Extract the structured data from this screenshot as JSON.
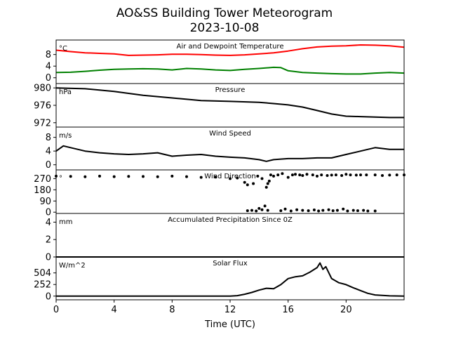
{
  "chart_data": {
    "type": "line",
    "title": "AO&SS Building Tower Meteorogram",
    "subtitle": "2023-10-08",
    "xlabel": "Time (UTC)",
    "xlim": [
      0,
      24
    ],
    "xticks": [
      0,
      4,
      8,
      12,
      16,
      20
    ],
    "panels": [
      {
        "title": "Air and Dewpoint Temperature",
        "unit": "°C",
        "ylim": [
          -2,
          13
        ],
        "yticks": [
          0,
          4,
          8
        ],
        "series": [
          {
            "color": "#ff0000",
            "style": "line",
            "x": [
              0,
              1,
              2,
              3,
              4,
              5,
              6,
              7,
              8,
              9,
              10,
              11,
              12,
              13,
              14,
              15,
              16,
              17,
              18,
              19,
              20,
              21,
              22,
              23,
              24
            ],
            "y": [
              9.5,
              9.0,
              8.6,
              8.4,
              8.2,
              7.7,
              7.8,
              7.9,
              8.1,
              8.1,
              8.0,
              7.8,
              7.7,
              7.9,
              8.2,
              8.6,
              9.2,
              10.0,
              10.6,
              10.9,
              11.0,
              11.3,
              11.2,
              11.0,
              10.5
            ]
          },
          {
            "color": "#008000",
            "style": "line",
            "x": [
              0,
              1,
              2,
              3,
              4,
              5,
              6,
              7,
              8,
              9,
              10,
              11,
              12,
              13,
              14,
              15,
              15.5,
              16,
              17,
              18,
              19,
              20,
              21,
              22,
              23,
              24
            ],
            "y": [
              1.8,
              1.9,
              2.2,
              2.6,
              2.9,
              3.0,
              3.1,
              3.0,
              2.7,
              3.2,
              3.0,
              2.7,
              2.5,
              2.9,
              3.2,
              3.6,
              3.5,
              2.4,
              1.8,
              1.6,
              1.4,
              1.3,
              1.3,
              1.6,
              1.8,
              1.6
            ]
          }
        ]
      },
      {
        "title": "Pressure",
        "unit": "hPa",
        "ylim": [
          971,
          981
        ],
        "yticks": [
          972,
          976,
          980
        ],
        "series": [
          {
            "color": "#000000",
            "style": "line",
            "x": [
              0,
              2,
              4,
              6,
              8,
              10,
              12,
              14,
              15,
              16,
              17,
              18,
              19,
              20,
              21,
              22,
              23,
              24
            ],
            "y": [
              980.0,
              979.8,
              979.2,
              978.3,
              977.7,
              977.1,
              976.9,
              976.7,
              976.4,
              976.1,
              975.6,
              974.8,
              974.0,
              973.5,
              973.4,
              973.3,
              973.2,
              973.2
            ]
          }
        ]
      },
      {
        "title": "Wind Speed",
        "unit": "m/s",
        "ylim": [
          -1.5,
          11
        ],
        "yticks": [
          0,
          4,
          8
        ],
        "series": [
          {
            "color": "#000000",
            "style": "line",
            "x": [
              0,
              0.5,
              1,
              2,
              3,
              4,
              5,
              6,
              7,
              8,
              9,
              10,
              11,
              12,
              13,
              14,
              14.5,
              15,
              16,
              17,
              18,
              19,
              20,
              21,
              22,
              23,
              24
            ],
            "y": [
              4.0,
              5.5,
              5.0,
              4.0,
              3.5,
              3.2,
              3.0,
              3.2,
              3.5,
              2.5,
              2.8,
              3.0,
              2.5,
              2.2,
              2.0,
              1.5,
              1.0,
              1.5,
              1.8,
              1.8,
              2.0,
              2.0,
              3.0,
              4.0,
              5.0,
              4.5,
              4.5
            ]
          }
        ]
      },
      {
        "title": "Wind Direction",
        "unit": "°",
        "ylim": [
          -10,
          340
        ],
        "yticks": [
          0,
          90,
          180,
          270
        ],
        "series": [
          {
            "color": "#000000",
            "style": "dots",
            "x": [
              0,
              1,
              2,
              3,
              4,
              5,
              6,
              7,
              8,
              9,
              10,
              11,
              12,
              12.5,
              13,
              13.2,
              13.6,
              13.9,
              14.2,
              14.5,
              14.6,
              14.7,
              14.8,
              15.0,
              15.3,
              15.6,
              16.0,
              16.3,
              16.5,
              16.8,
              17.0,
              17.3,
              17.7,
              18.0,
              18.3,
              18.7,
              19.0,
              19.3,
              19.7,
              20.0,
              20.3,
              20.7,
              21.0,
              21.4,
              22.0,
              22.5,
              23.0,
              23.5,
              24.0
            ],
            "y": [
              290,
              288,
              285,
              290,
              286,
              288,
              287,
              285,
              290,
              286,
              280,
              282,
              270,
              275,
              240,
              220,
              230,
              290,
              270,
              200,
              230,
              250,
              300,
              290,
              300,
              310,
              280,
              300,
              305,
              300,
              295,
              305,
              300,
              290,
              300,
              295,
              298,
              300,
              295,
              305,
              300,
              298,
              300,
              300,
              300,
              295,
              298,
              300,
              300
            ]
          },
          {
            "color": "#000000",
            "style": "dots",
            "x": [
              13.2,
              13.5,
              13.8,
              14.0,
              14.2,
              14.4,
              14.6,
              15.5,
              15.8,
              16.2,
              16.6,
              17.0,
              17.4,
              17.8,
              18.1,
              18.4,
              18.8,
              19.1,
              19.4,
              19.8,
              20.1,
              20.5,
              20.8,
              21.2,
              21.5,
              22.0
            ],
            "y": [
              12,
              15,
              10,
              30,
              20,
              50,
              15,
              12,
              25,
              10,
              20,
              15,
              12,
              18,
              10,
              15,
              20,
              12,
              15,
              25,
              10,
              15,
              12,
              15,
              10,
              10
            ]
          }
        ]
      },
      {
        "title": "Accumulated Precipitation Since 0Z",
        "unit": "mm",
        "ylim": [
          0,
          5
        ],
        "yticks": [
          0,
          2,
          4
        ],
        "series": [
          {
            "color": "#000000",
            "style": "line",
            "x": [
              0,
              24
            ],
            "y": [
              0,
              0
            ]
          }
        ]
      },
      {
        "title": "Solar Flux",
        "unit": "W/m^2",
        "ylim": [
          -80,
          850
        ],
        "yticks": [
          0,
          252,
          504
        ],
        "series": [
          {
            "color": "#000000",
            "style": "line",
            "x": [
              0,
              12,
              12.5,
              13,
              13.5,
              14,
              14.5,
              15,
              15.5,
              16,
              16.5,
              17,
              17.5,
              18,
              18.2,
              18.4,
              18.6,
              19,
              19.5,
              20,
              20.5,
              21,
              21.5,
              22,
              23,
              24
            ],
            "y": [
              0,
              0,
              10,
              40,
              80,
              130,
              170,
              160,
              250,
              380,
              420,
              440,
              520,
              620,
              720,
              580,
              640,
              380,
              290,
              250,
              180,
              120,
              60,
              25,
              5,
              0
            ]
          }
        ]
      }
    ]
  }
}
